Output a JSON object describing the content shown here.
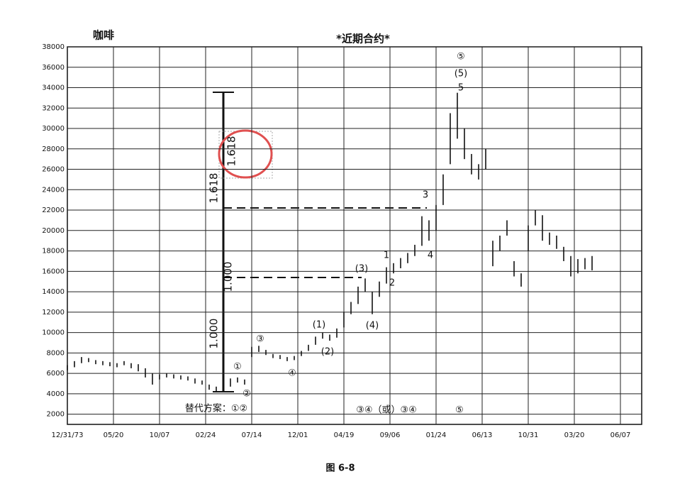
{
  "chart_data": {
    "type": "hlbar",
    "title": "咖啡",
    "subtitle": "*近期合约*",
    "caption": "图  6-8",
    "categories": [
      "12/31/73",
      "05/20",
      "10/07",
      "02/24",
      "07/14",
      "12/01",
      "04/19",
      "09/06",
      "01/24",
      "06/13",
      "10/31",
      "03/20",
      "06/07"
    ],
    "high": [
      6800,
      7200,
      7600,
      7500,
      7300,
      7200,
      7100,
      7000,
      7200,
      7000,
      6900,
      6500,
      6000,
      5900,
      6000,
      5900,
      5800,
      5700,
      5500,
      5300,
      4900,
      4700,
      4900,
      5500,
      5600,
      5400,
      8600,
      8700,
      8300,
      7900,
      7800,
      7600,
      7700,
      8200,
      8800,
      9600,
      10000,
      9800,
      10400,
      12000,
      13000,
      14500,
      15300,
      14000,
      15000,
      16400,
      16800,
      17300,
      17800,
      18600,
      21400,
      21000,
      22500,
      25500,
      31500,
      33500,
      30000,
      27500,
      26500,
      28000,
      19000,
      19500,
      21000,
      17000,
      15800,
      20500,
      22000,
      21500,
      19800,
      19500,
      18400,
      17500,
      17200,
      17300,
      17500
    ],
    "low": [
      6300,
      6600,
      7000,
      7100,
      6900,
      6800,
      6700,
      6600,
      6800,
      6500,
      6200,
      5600,
      4900,
      5400,
      5600,
      5500,
      5400,
      5300,
      5000,
      4900,
      4400,
      4200,
      4400,
      4700,
      5100,
      4900,
      7600,
      8100,
      7800,
      7500,
      7400,
      7200,
      7300,
      7700,
      8200,
      8800,
      9400,
      9200,
      9500,
      10500,
      11800,
      12800,
      14000,
      11800,
      13500,
      14800,
      15800,
      16300,
      16800,
      17500,
      18500,
      19000,
      20000,
      22500,
      26500,
      29000,
      27000,
      25500,
      25000,
      26000,
      16500,
      18000,
      19500,
      15500,
      14500,
      18000,
      20500,
      19000,
      18600,
      18200,
      17000,
      15500,
      15800,
      16200,
      16100
    ],
    "color": "#111111",
    "ylim": [
      1000,
      38000
    ],
    "yticks": [
      2000,
      4000,
      6000,
      8000,
      10000,
      12000,
      14000,
      16000,
      18000,
      20000,
      22000,
      24000,
      26000,
      28000,
      30000,
      32000,
      34000,
      36000,
      38000
    ],
    "grid": true,
    "annotations": [
      "⑤",
      "(5)",
      "5",
      "3",
      "1",
      "2",
      "4",
      "(3)",
      "(4)",
      "(1)",
      "(2)",
      "③",
      "④",
      "①",
      "②",
      "替代方案：①②",
      "③④（或）③④",
      "⑤"
    ],
    "ratio_labels": [
      "1.000",
      "1.000",
      "1.618",
      "1.618"
    ]
  }
}
